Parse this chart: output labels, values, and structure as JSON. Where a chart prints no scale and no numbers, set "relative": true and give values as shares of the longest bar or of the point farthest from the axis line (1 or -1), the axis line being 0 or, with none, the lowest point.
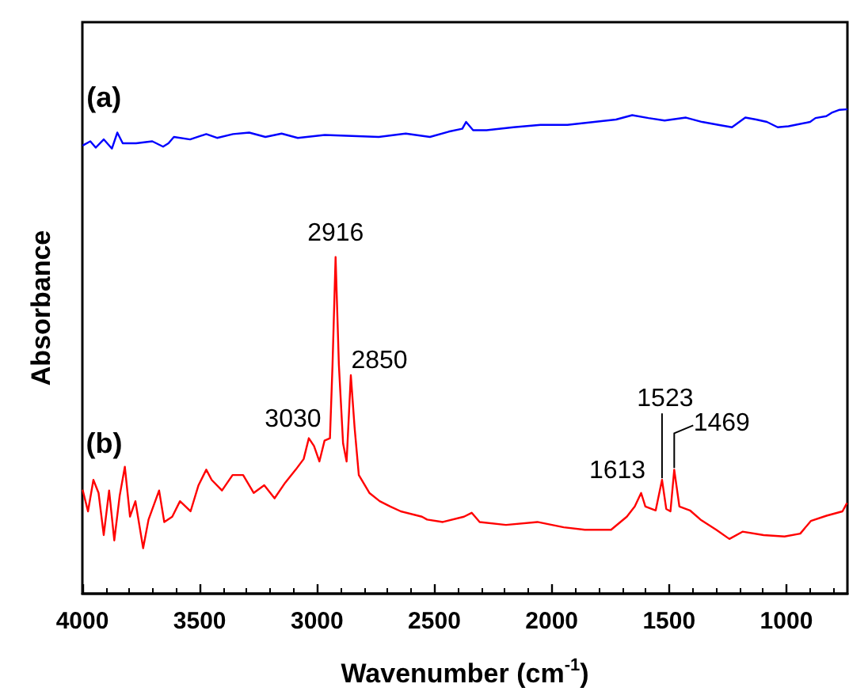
{
  "chart_data": {
    "type": "line",
    "relative": true,
    "xlabel": "Wavenumber (cm$^{-1}$)",
    "ylabel": "Absorbance",
    "xlim": [
      4000,
      740
    ],
    "xticks": [
      4000,
      3500,
      3000,
      2500,
      2000,
      1500,
      1000
    ],
    "legend": false,
    "grid": false,
    "marker": "none",
    "line_style": "solid",
    "series": [
      {
        "name": "(a)",
        "color": "#0000ff",
        "x": [
          3996,
          3966,
          3943,
          3909,
          3874,
          3851,
          3828,
          3771,
          3702,
          3656,
          3633,
          3610,
          3541,
          3472,
          3426,
          3358,
          3289,
          3220,
          3151,
          3082,
          2967,
          2852,
          2737,
          2622,
          2519,
          2439,
          2381,
          2365,
          2335,
          2278,
          2163,
          2048,
          1933,
          1818,
          1726,
          1657,
          1588,
          1519,
          1428,
          1359,
          1290,
          1232,
          1175,
          1129,
          1083,
          1037,
          991,
          899,
          876,
          830,
          807,
          773,
          743
        ],
        "values": [
          0.926,
          0.934,
          0.921,
          0.938,
          0.919,
          0.952,
          0.93,
          0.93,
          0.934,
          0.923,
          0.93,
          0.943,
          0.938,
          0.949,
          0.941,
          0.949,
          0.952,
          0.943,
          0.95,
          0.941,
          0.947,
          0.945,
          0.943,
          0.95,
          0.943,
          0.954,
          0.96,
          0.974,
          0.957,
          0.957,
          0.963,
          0.968,
          0.968,
          0.974,
          0.979,
          0.988,
          0.982,
          0.977,
          0.983,
          0.974,
          0.968,
          0.963,
          0.983,
          0.979,
          0.974,
          0.963,
          0.965,
          0.974,
          0.982,
          0.986,
          0.993,
          0.999,
          1.0
        ]
      },
      {
        "name": "(b)",
        "color": "#ff0000",
        "x": [
          3998,
          3976,
          3953,
          3931,
          3909,
          3886,
          3864,
          3841,
          3819,
          3797,
          3774,
          3741,
          3718,
          3673,
          3651,
          3617,
          3584,
          3539,
          3505,
          3472,
          3449,
          3405,
          3360,
          3315,
          3270,
          3225,
          3181,
          3136,
          3091,
          3057,
          3035,
          3013,
          2990,
          2968,
          2945,
          2934,
          2921,
          2907,
          2889,
          2874,
          2856,
          2840,
          2822,
          2777,
          2733,
          2688,
          2643,
          2553,
          2531,
          2464,
          2374,
          2341,
          2307,
          2195,
          2061,
          1949,
          1859,
          1747,
          1680,
          1646,
          1619,
          1601,
          1557,
          1530,
          1512,
          1494,
          1478,
          1456,
          1411,
          1366,
          1299,
          1243,
          1187,
          1097,
          1008,
          941,
          896,
          829,
          761,
          743
        ],
        "values": [
          0.213,
          0.17,
          0.235,
          0.208,
          0.121,
          0.213,
          0.11,
          0.202,
          0.262,
          0.159,
          0.191,
          0.094,
          0.153,
          0.213,
          0.148,
          0.159,
          0.191,
          0.17,
          0.224,
          0.256,
          0.235,
          0.213,
          0.245,
          0.245,
          0.208,
          0.224,
          0.197,
          0.229,
          0.256,
          0.278,
          0.321,
          0.305,
          0.273,
          0.316,
          0.321,
          0.473,
          0.695,
          0.473,
          0.31,
          0.273,
          0.451,
          0.343,
          0.245,
          0.208,
          0.191,
          0.18,
          0.17,
          0.159,
          0.153,
          0.148,
          0.159,
          0.167,
          0.148,
          0.142,
          0.148,
          0.137,
          0.132,
          0.132,
          0.159,
          0.18,
          0.208,
          0.18,
          0.172,
          0.235,
          0.175,
          0.17,
          0.256,
          0.18,
          0.172,
          0.153,
          0.132,
          0.113,
          0.128,
          0.121,
          0.118,
          0.124,
          0.15,
          0.161,
          0.17,
          0.186
        ]
      }
    ],
    "annotations": [
      {
        "text": "3030",
        "x": 3035,
        "y": 0.321
      },
      {
        "text": "2916",
        "x": 2921,
        "y": 0.695
      },
      {
        "text": "2850",
        "x": 2856,
        "y": 0.451
      },
      {
        "text": "1613",
        "x": 1619,
        "y": 0.208
      },
      {
        "text": "1523",
        "x": 1530,
        "y": 0.235
      },
      {
        "text": "1469",
        "x": 1478,
        "y": 0.256
      }
    ]
  }
}
